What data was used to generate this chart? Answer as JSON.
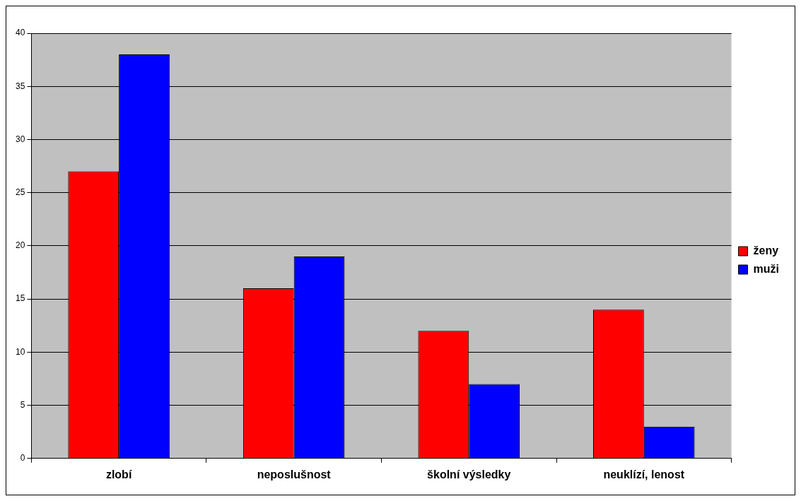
{
  "chart_data": {
    "type": "bar",
    "categories": [
      "zlobí",
      "neposlušnost",
      "školní výsledky",
      "neuklízí, lenost"
    ],
    "series": [
      {
        "name": "ženy",
        "color": "#ff0000",
        "values": [
          27,
          16,
          12,
          14
        ]
      },
      {
        "name": "muži",
        "color": "#0000ff",
        "values": [
          38,
          19,
          7,
          3
        ]
      }
    ],
    "ylim": [
      0,
      40
    ],
    "yticks": [
      0,
      5,
      10,
      15,
      20,
      25,
      30,
      35,
      40
    ],
    "grid": "y",
    "legend": "right"
  }
}
